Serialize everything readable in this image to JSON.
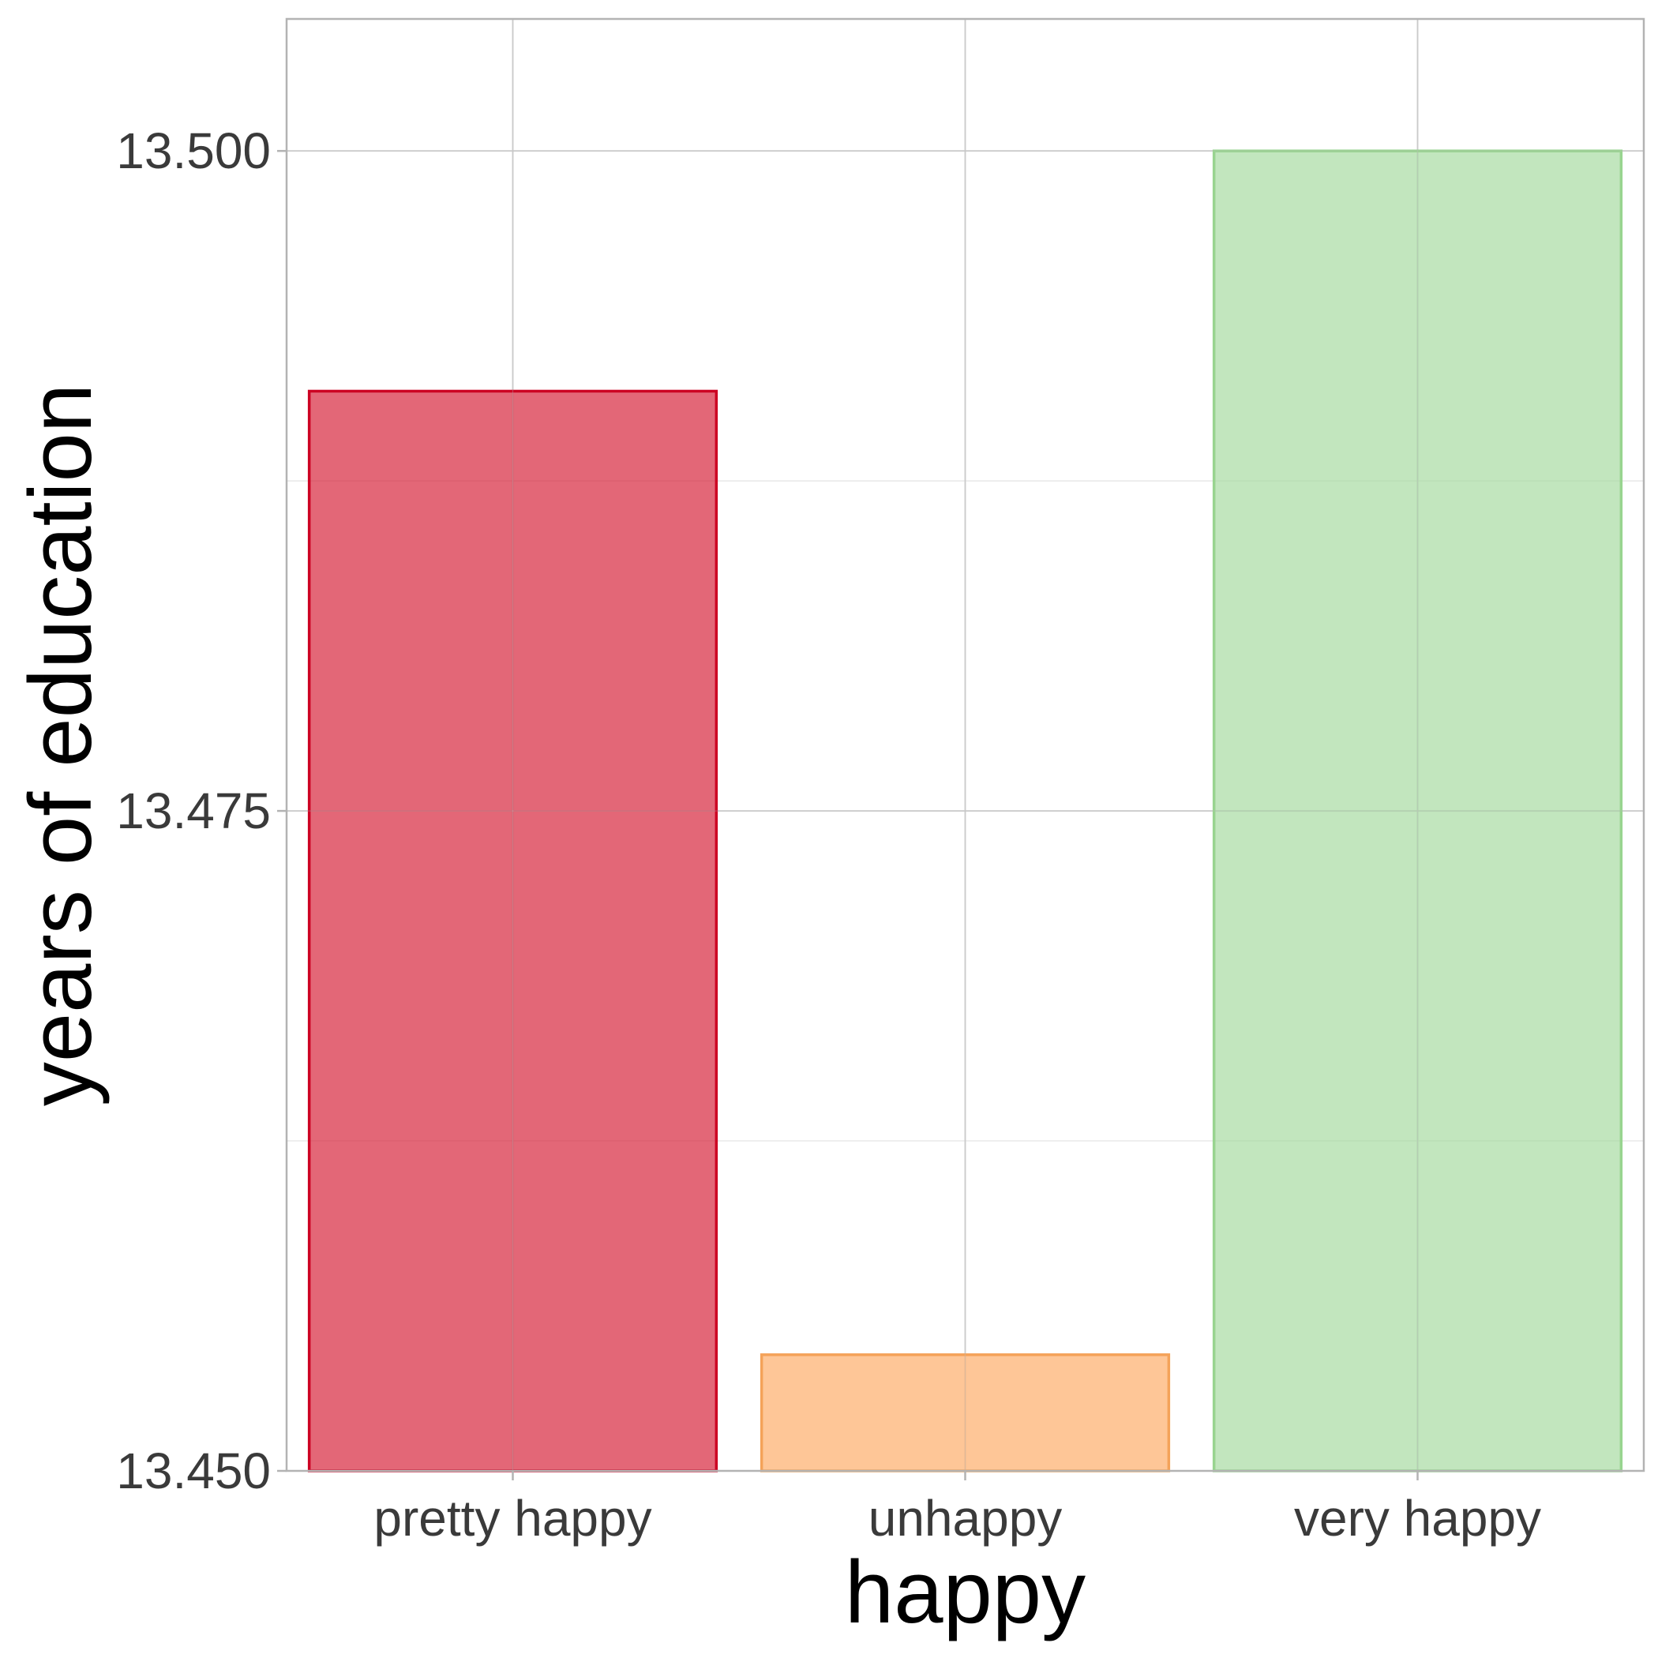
{
  "chart_data": {
    "type": "bar",
    "title": "",
    "xlabel": "happy",
    "ylabel": "years of education",
    "categories": [
      "pretty happy",
      "unhappy",
      "very happy"
    ],
    "values": [
      13.4909,
      13.4544,
      13.5
    ],
    "ylim": [
      13.45,
      13.505
    ],
    "yticks": [
      13.45,
      13.475,
      13.5
    ],
    "ytick_labels": [
      "13.450",
      "13.475",
      "13.500"
    ],
    "grid": true,
    "legend": "none",
    "colors": {
      "fills": [
        "#d7263d",
        "#fdae6b",
        "#a1d99b"
      ],
      "fill_opacity": [
        0.7,
        0.7,
        0.65
      ],
      "strokes": [
        "#cc0022",
        "#f4a259",
        "#98d48f"
      ]
    }
  }
}
